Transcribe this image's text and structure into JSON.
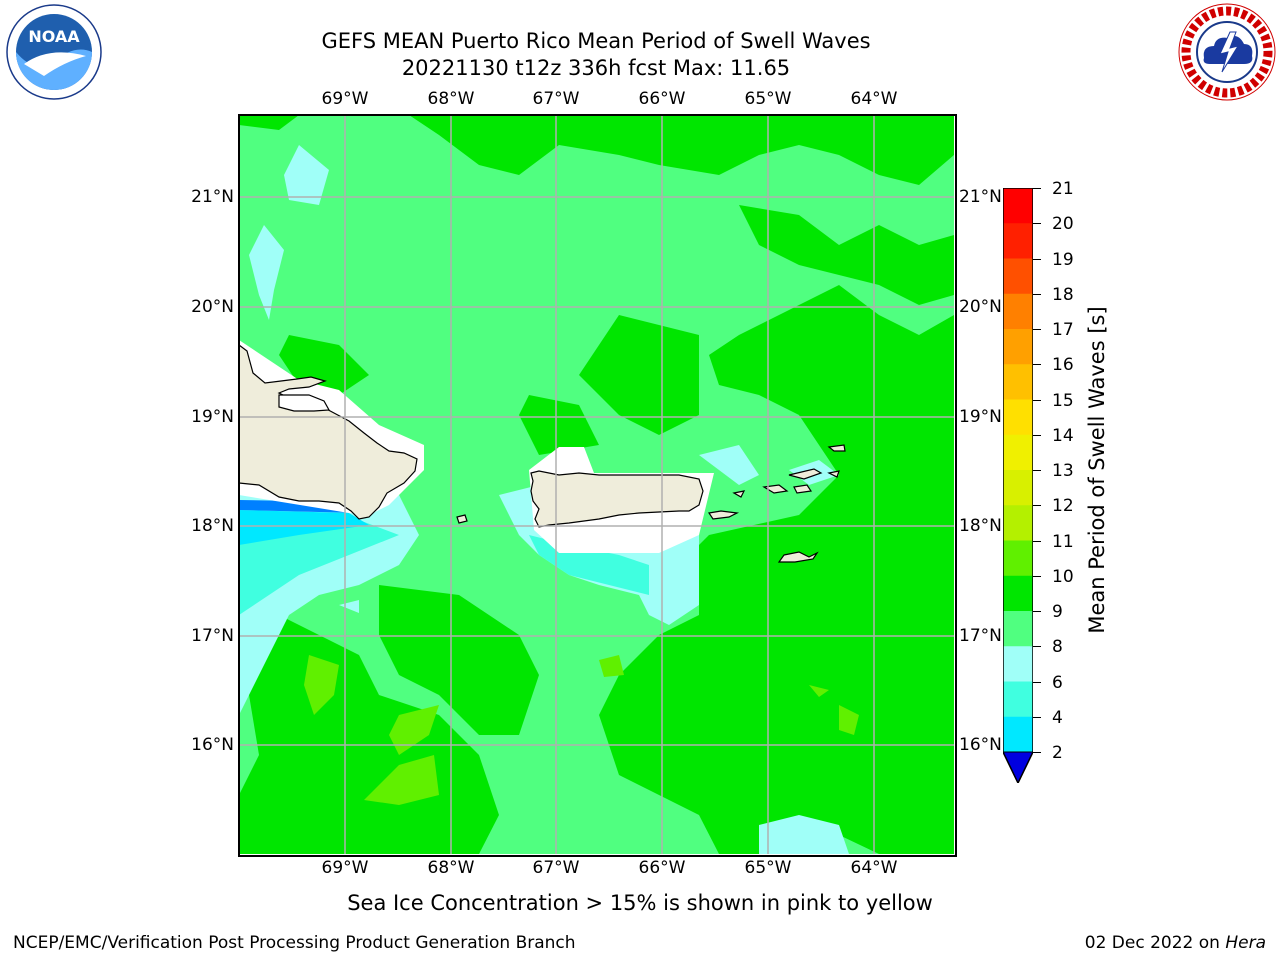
{
  "title": {
    "line1": "GEFS MEAN Puerto Rico Mean Period of Swell Waves",
    "line2": "20221130 t12z 336h fcst   Max: 11.65"
  },
  "map": {
    "lon_labels": [
      "69°W",
      "68°W",
      "67°W",
      "66°W",
      "65°W",
      "64°W"
    ],
    "lat_labels": [
      "21°N",
      "20°N",
      "19°N",
      "18°N",
      "17°N",
      "16°N"
    ]
  },
  "colorbar": {
    "title": "Mean Period of Swell Waves [s]",
    "ticks": [
      "2",
      "4",
      "6",
      "8",
      "9",
      "10",
      "11",
      "12",
      "13",
      "14",
      "15",
      "16",
      "17",
      "18",
      "19",
      "20",
      "21"
    ],
    "colors": [
      "#0050ff",
      "#00b4ff",
      "#00e8ff",
      "#40ffe0",
      "#a0fff8",
      "#50ff80",
      "#00e600",
      "#60f000",
      "#b4f000",
      "#d8f000",
      "#f0f000",
      "#ffe000",
      "#ffc000",
      "#ffa000",
      "#ff8000",
      "#ff5000",
      "#ff2000",
      "#ff0000"
    ],
    "under_color": "#0000e0"
  },
  "footer": {
    "note": "Sea Ice Concentration > 15% is shown in pink to yellow",
    "credit": "NCEP/EMC/Verification Post Processing Product Generation Branch",
    "date": "02 Dec 2022 on",
    "host": "Hera"
  },
  "logos": {
    "left": "NOAA",
    "right": "NATIONAL WEATHER SERVICE"
  }
}
